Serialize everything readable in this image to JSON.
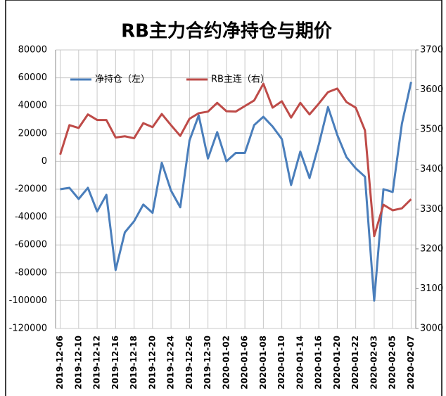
{
  "chart_data": {
    "type": "line",
    "title": "RB主力合约净持仓与期价",
    "categories": [
      "2019-12-06",
      null,
      "2019-12-10",
      null,
      "2019-12-12",
      null,
      "2019-12-16",
      null,
      "2019-12-18",
      null,
      "2019-12-20",
      null,
      "2019-12-24",
      null,
      "2019-12-26",
      null,
      "2019-12-30",
      null,
      "2020-01-02",
      null,
      "2020-01-06",
      null,
      "2020-01-08",
      null,
      "2020-01-10",
      null,
      "2020-01-14",
      null,
      "2020-01-16",
      null,
      "2020-01-20",
      null,
      "2020-01-22",
      null,
      "2020-02-03",
      null,
      "2020-02-05",
      null,
      "2020-02-07"
    ],
    "series": [
      {
        "name": "净持仓（左）",
        "color": "#4a7ebb",
        "values": [
          -20000,
          -19000,
          -27000,
          -19000,
          -36000,
          -24000,
          -78000,
          -51000,
          -43000,
          -31000,
          -37000,
          -1000,
          -21000,
          -33000,
          15000,
          33000,
          2000,
          21000,
          0,
          6000,
          6000,
          26000,
          32000,
          25000,
          16000,
          -17000,
          7000,
          -12000,
          12000,
          39000,
          19000,
          3000,
          -5000,
          -11000,
          -100000,
          -20000,
          -22000,
          27000,
          57000
        ]
      },
      {
        "name": "RB主连（右）",
        "color": "#be4b48",
        "axis": "y2",
        "values": [
          3437,
          3511,
          3504,
          3538,
          3524,
          3524,
          3480,
          3483,
          3478,
          3516,
          3506,
          3539,
          3511,
          3484,
          3527,
          3541,
          3545,
          3567,
          3546,
          3545,
          3559,
          3573,
          3615,
          3555,
          3571,
          3530,
          3567,
          3538,
          3565,
          3594,
          3603,
          3569,
          3555,
          3498,
          3232,
          3311,
          3297,
          3302,
          3325
        ]
      }
    ],
    "ylim": [
      -120000,
      80000
    ],
    "yticks": [
      -120000,
      -100000,
      -80000,
      -60000,
      -40000,
      -20000,
      0,
      20000,
      40000,
      60000,
      80000
    ],
    "y2lim": [
      3000,
      3700
    ],
    "y2ticks": [
      3000,
      3100,
      3200,
      3300,
      3400,
      3500,
      3600,
      3700
    ],
    "grid": true,
    "legend": "top-left"
  }
}
